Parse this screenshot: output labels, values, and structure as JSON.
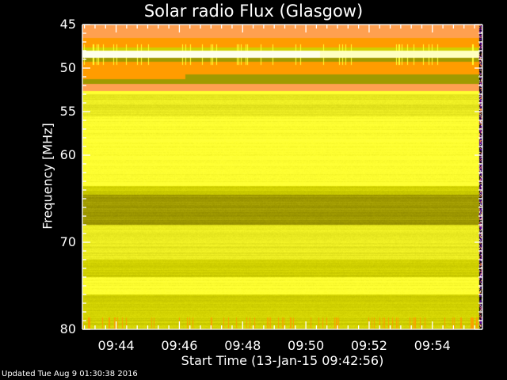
{
  "chart_data": {
    "type": "heatmap",
    "title": "Solar radio Flux (Glasgow)",
    "xlabel": "Start Time (13-Jan-15 09:42:56)",
    "ylabel": "Frequency [MHz]",
    "x_tick_labels": [
      "09:44",
      "09:46",
      "09:48",
      "09:50",
      "09:52",
      "09:54"
    ],
    "y_tick_labels": [
      "45",
      "50",
      "55",
      "60",
      "70",
      "80"
    ],
    "ylim": [
      45,
      80
    ],
    "x_start": "09:42:56",
    "x_end": "09:55:35",
    "colorscale": [
      "#a09a00",
      "#d8d800",
      "#ffff30",
      "#ffffc0",
      "#ff9c00",
      "#ffa050"
    ],
    "features": [
      {
        "freq_range": [
          45,
          52.5
        ],
        "level": "orange (high intensity)"
      },
      {
        "freq_range": [
          48,
          48.7
        ],
        "level": "white band"
      },
      {
        "freq_range": [
          52.5,
          80
        ],
        "level": "yellow"
      },
      {
        "freq_range": [
          64,
          68
        ],
        "level": "olive (darker)"
      },
      {
        "freq_range": [
          78.5,
          80
        ],
        "level": "orange vertical bursts"
      }
    ]
  },
  "footer": {
    "updated": "Updated Tue Aug  9 01:30:38 2016"
  }
}
